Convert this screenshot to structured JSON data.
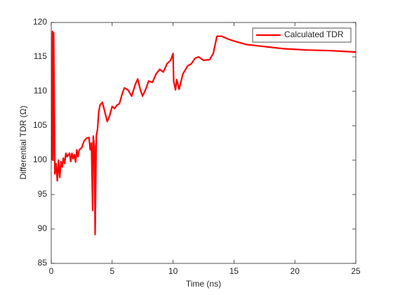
{
  "chart_data": {
    "type": "line",
    "xlabel": "Time (ns)",
    "ylabel": "Differential TDR (Ω)",
    "xlim": [
      0,
      25
    ],
    "ylim": [
      85,
      120
    ],
    "xticks": [
      0,
      5,
      10,
      15,
      20,
      25
    ],
    "yticks": [
      85,
      90,
      95,
      100,
      105,
      110,
      115,
      120
    ],
    "grid": false,
    "legend_position": "upper-right",
    "series": [
      {
        "name": "Calculated TDR",
        "color": "#ff0000",
        "x": [
          0.05,
          0.1,
          0.15,
          0.2,
          0.3,
          0.4,
          0.5,
          0.6,
          0.7,
          0.8,
          0.9,
          1.0,
          1.1,
          1.2,
          1.3,
          1.5,
          1.6,
          1.7,
          1.8,
          1.9,
          2.0,
          2.1,
          2.2,
          2.3,
          2.5,
          2.7,
          2.9,
          3.1,
          3.2,
          3.3,
          3.4,
          3.45,
          3.55,
          3.6,
          3.7,
          3.8,
          3.9,
          4.0,
          4.2,
          4.4,
          4.6,
          4.8,
          5.0,
          5.2,
          5.4,
          5.6,
          5.8,
          6.0,
          6.3,
          6.6,
          6.9,
          7.1,
          7.3,
          7.5,
          7.8,
          8.0,
          8.3,
          8.6,
          8.9,
          9.2,
          9.5,
          9.8,
          10.0,
          10.05,
          10.2,
          10.3,
          10.5,
          10.8,
          11.2,
          11.5,
          11.8,
          12.1,
          12.5,
          13.0,
          13.3,
          13.6,
          14.0,
          14.5,
          15,
          16,
          17,
          18,
          19,
          20,
          21,
          22,
          23,
          24,
          25
        ],
        "values": [
          100,
          118.7,
          100,
          118.5,
          98,
          99.5,
          97,
          100,
          97.5,
          99.8,
          99,
          100.3,
          99.5,
          101,
          100.5,
          101,
          99.8,
          101,
          100.2,
          100.8,
          99.7,
          101.5,
          100.5,
          101.5,
          101.8,
          102.8,
          103.2,
          103.3,
          101.5,
          102.5,
          92.7,
          103.5,
          102,
          89.2,
          103.5,
          104.5,
          107,
          108,
          108.4,
          107,
          105.6,
          106.5,
          107.8,
          107.5,
          108,
          108.2,
          109.5,
          110.5,
          110.2,
          109.3,
          111,
          111.8,
          110.3,
          109.3,
          110.5,
          111.5,
          111.3,
          112.5,
          113.2,
          112.8,
          114,
          114.5,
          115.5,
          111.5,
          110.2,
          111.7,
          110.3,
          112.5,
          113.7,
          114,
          114.8,
          115,
          114.5,
          114.6,
          115.5,
          118,
          118,
          117.6,
          117.3,
          116.8,
          116.6,
          116.4,
          116.2,
          116.1,
          116,
          115.95,
          115.9,
          115.8,
          115.7
        ]
      }
    ]
  }
}
